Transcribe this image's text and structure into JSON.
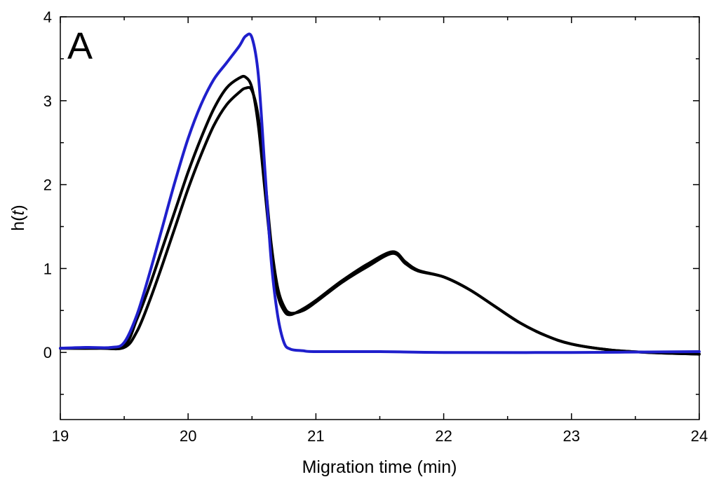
{
  "chart_data": {
    "type": "line",
    "panel_label": "A",
    "xlabel": "Migration time (min)",
    "ylabel_prefix": "h(",
    "ylabel_var": "t",
    "ylabel_suffix": ")",
    "xlim": [
      19,
      24
    ],
    "ylim": [
      -0.8,
      4
    ],
    "x_ticks": [
      19,
      20,
      21,
      22,
      23,
      24
    ],
    "x_tick_labels": [
      "19",
      "20",
      "21",
      "22",
      "23",
      "24"
    ],
    "y_ticks": [
      0,
      1,
      2,
      3,
      4
    ],
    "y_tick_labels": [
      "0",
      "1",
      "2",
      "3",
      "4"
    ],
    "grid": false,
    "series": [
      {
        "color": "#1f1fcc",
        "x": [
          19.0,
          19.2,
          19.4,
          19.5,
          19.6,
          19.7,
          19.8,
          19.9,
          20.0,
          20.1,
          20.2,
          20.3,
          20.4,
          20.45,
          20.5,
          20.55,
          20.6,
          20.65,
          20.7,
          20.75,
          20.8,
          20.9,
          21.0,
          21.5,
          22.0,
          23.0,
          24.0
        ],
        "y": [
          0.05,
          0.06,
          0.06,
          0.12,
          0.45,
          0.95,
          1.5,
          2.05,
          2.55,
          2.95,
          3.25,
          3.45,
          3.65,
          3.77,
          3.75,
          3.3,
          2.2,
          1.1,
          0.45,
          0.12,
          0.04,
          0.02,
          0.01,
          0.01,
          0.0,
          0.0,
          0.01
        ]
      },
      {
        "color": "#000000",
        "x": [
          19.0,
          19.3,
          19.5,
          19.6,
          19.7,
          19.8,
          19.9,
          20.0,
          20.1,
          20.2,
          20.3,
          20.4,
          20.45,
          20.5,
          20.55,
          20.6,
          20.65,
          20.7,
          20.75,
          20.8,
          20.9,
          21.0,
          21.2,
          21.4,
          21.6,
          21.7,
          21.8,
          22.0,
          22.2,
          22.4,
          22.6,
          22.8,
          23.0,
          23.3,
          23.6,
          24.0
        ],
        "y": [
          0.05,
          0.05,
          0.08,
          0.4,
          0.8,
          1.25,
          1.7,
          2.15,
          2.55,
          2.9,
          3.15,
          3.27,
          3.28,
          3.15,
          2.7,
          1.95,
          1.2,
          0.7,
          0.5,
          0.45,
          0.52,
          0.62,
          0.85,
          1.05,
          1.2,
          1.08,
          0.98,
          0.9,
          0.75,
          0.55,
          0.35,
          0.2,
          0.1,
          0.03,
          0.0,
          -0.02
        ]
      },
      {
        "color": "#000000",
        "x": [
          19.0,
          19.3,
          19.5,
          19.6,
          19.7,
          19.8,
          19.9,
          20.0,
          20.1,
          20.2,
          20.3,
          20.4,
          20.45,
          20.5,
          20.55,
          20.6,
          20.65,
          20.7,
          20.75,
          20.8,
          20.9,
          21.0,
          21.2,
          21.4,
          21.6,
          21.7,
          21.8,
          22.0,
          22.2,
          22.4,
          22.6,
          22.8,
          23.0,
          23.3,
          23.6,
          24.0
        ],
        "y": [
          0.05,
          0.05,
          0.06,
          0.25,
          0.62,
          1.05,
          1.5,
          1.95,
          2.35,
          2.7,
          2.95,
          3.1,
          3.15,
          3.12,
          2.8,
          2.1,
          1.3,
          0.78,
          0.55,
          0.47,
          0.5,
          0.6,
          0.83,
          1.02,
          1.18,
          1.06,
          0.97,
          0.9,
          0.75,
          0.55,
          0.35,
          0.2,
          0.1,
          0.03,
          0.0,
          -0.02
        ]
      }
    ]
  }
}
